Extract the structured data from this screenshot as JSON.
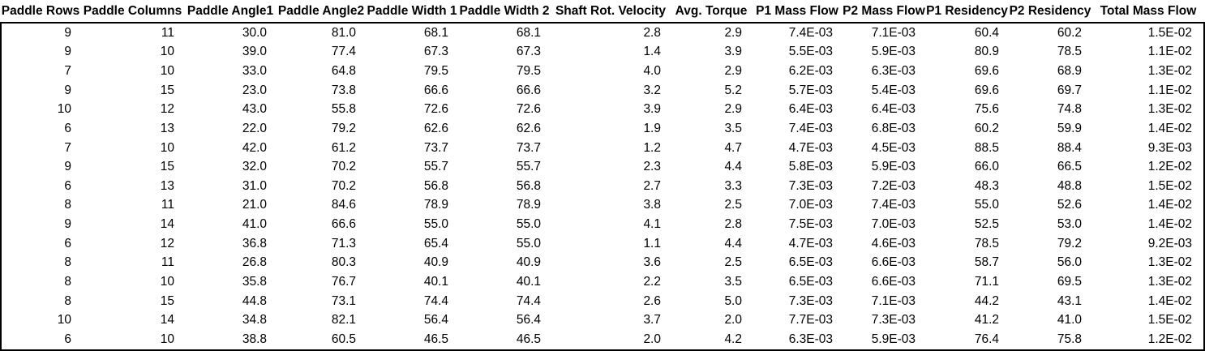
{
  "colors": {
    "background": "#ffffff",
    "text": "#000000",
    "border": "#000000"
  },
  "table": {
    "columns": [
      "Paddle Rows",
      "Paddle Columns",
      "Paddle Angle1",
      "Paddle Angle2",
      "Paddle Width 1",
      "Paddle Width 2",
      "Shaft Rot. Velocity",
      "Avg. Torque",
      "P1 Mass Flow",
      "P2 Mass Flow",
      "P1 Residency",
      "P2 Residency",
      "Total Mass Flow"
    ],
    "rows": [
      [
        "9",
        "11",
        "30.0",
        "81.0",
        "68.1",
        "68.1",
        "2.8",
        "2.9",
        "7.4E-03",
        "7.1E-03",
        "60.4",
        "60.2",
        "1.5E-02"
      ],
      [
        "9",
        "10",
        "39.0",
        "77.4",
        "67.3",
        "67.3",
        "1.4",
        "3.9",
        "5.5E-03",
        "5.9E-03",
        "80.9",
        "78.5",
        "1.1E-02"
      ],
      [
        "7",
        "10",
        "33.0",
        "64.8",
        "79.5",
        "79.5",
        "4.0",
        "2.9",
        "6.2E-03",
        "6.3E-03",
        "69.6",
        "68.9",
        "1.3E-02"
      ],
      [
        "9",
        "15",
        "23.0",
        "73.8",
        "66.6",
        "66.6",
        "3.2",
        "5.2",
        "5.7E-03",
        "5.4E-03",
        "69.6",
        "69.7",
        "1.1E-02"
      ],
      [
        "10",
        "12",
        "43.0",
        "55.8",
        "72.6",
        "72.6",
        "3.9",
        "2.9",
        "6.4E-03",
        "6.4E-03",
        "75.6",
        "74.8",
        "1.3E-02"
      ],
      [
        "6",
        "13",
        "22.0",
        "79.2",
        "62.6",
        "62.6",
        "1.9",
        "3.5",
        "7.4E-03",
        "6.8E-03",
        "60.2",
        "59.9",
        "1.4E-02"
      ],
      [
        "7",
        "10",
        "42.0",
        "61.2",
        "73.7",
        "73.7",
        "1.2",
        "4.7",
        "4.7E-03",
        "4.5E-03",
        "88.5",
        "88.4",
        "9.3E-03"
      ],
      [
        "9",
        "15",
        "32.0",
        "70.2",
        "55.7",
        "55.7",
        "2.3",
        "4.4",
        "5.8E-03",
        "5.9E-03",
        "66.0",
        "66.5",
        "1.2E-02"
      ],
      [
        "6",
        "13",
        "31.0",
        "70.2",
        "56.8",
        "56.8",
        "2.7",
        "3.3",
        "7.3E-03",
        "7.2E-03",
        "48.3",
        "48.8",
        "1.5E-02"
      ],
      [
        "8",
        "11",
        "21.0",
        "84.6",
        "78.9",
        "78.9",
        "3.8",
        "2.5",
        "7.0E-03",
        "7.4E-03",
        "55.0",
        "52.6",
        "1.4E-02"
      ],
      [
        "9",
        "14",
        "41.0",
        "66.6",
        "55.0",
        "55.0",
        "4.1",
        "2.8",
        "7.5E-03",
        "7.0E-03",
        "52.5",
        "53.0",
        "1.4E-02"
      ],
      [
        "6",
        "12",
        "36.8",
        "71.3",
        "65.4",
        "55.0",
        "1.1",
        "4.4",
        "4.7E-03",
        "4.6E-03",
        "78.5",
        "79.2",
        "9.2E-03"
      ],
      [
        "8",
        "11",
        "26.8",
        "80.3",
        "40.9",
        "40.9",
        "3.6",
        "2.5",
        "6.5E-03",
        "6.6E-03",
        "58.7",
        "56.0",
        "1.3E-02"
      ],
      [
        "8",
        "10",
        "35.8",
        "76.7",
        "40.1",
        "40.1",
        "2.2",
        "3.5",
        "6.5E-03",
        "6.6E-03",
        "71.1",
        "69.5",
        "1.3E-02"
      ],
      [
        "8",
        "15",
        "44.8",
        "73.1",
        "74.4",
        "74.4",
        "2.6",
        "5.0",
        "7.3E-03",
        "7.1E-03",
        "44.2",
        "43.1",
        "1.4E-02"
      ],
      [
        "10",
        "14",
        "34.8",
        "82.1",
        "56.4",
        "56.4",
        "3.7",
        "2.0",
        "7.7E-03",
        "7.3E-03",
        "41.2",
        "41.0",
        "1.5E-02"
      ],
      [
        "6",
        "10",
        "38.8",
        "60.5",
        "46.5",
        "46.5",
        "2.0",
        "4.2",
        "6.3E-03",
        "5.9E-03",
        "76.4",
        "75.8",
        "1.2E-02"
      ]
    ]
  }
}
